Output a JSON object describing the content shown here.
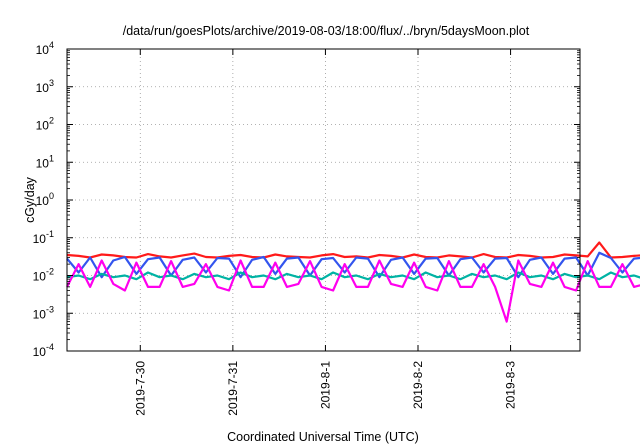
{
  "chart_data": {
    "type": "line",
    "title": "/data/run/goesPlots/archive/2019-08-03/18:00/flux/../bryn/5daysMoon.plot",
    "xlabel": "Coordinated Universal Time (UTC)",
    "ylabel": "cGy/day",
    "yscale": "log",
    "ylim": [
      0.0001,
      10000
    ],
    "y_ticks": [
      {
        "base": "10",
        "exp": "4"
      },
      {
        "base": "10",
        "exp": "3"
      },
      {
        "base": "10",
        "exp": "2"
      },
      {
        "base": "10",
        "exp": "1"
      },
      {
        "base": "10",
        "exp": "0"
      },
      {
        "base": "10",
        "exp": "-1"
      },
      {
        "base": "10",
        "exp": "-2"
      },
      {
        "base": "10",
        "exp": "-3"
      },
      {
        "base": "10",
        "exp": "-4"
      }
    ],
    "xlim": [
      "2019-07-29T05:00",
      "2019-08-03T18:00"
    ],
    "x_ticks": [
      {
        "value": "2019-07-30T00:00",
        "label": "2019-7-30"
      },
      {
        "value": "2019-07-31T00:00",
        "label": "2019-7-31"
      },
      {
        "value": "2019-08-01T00:00",
        "label": "2019-8-1"
      },
      {
        "value": "2019-08-02T00:00",
        "label": "2019-8-2"
      },
      {
        "value": "2019-08-03T00:00",
        "label": "2019-8-3"
      }
    ],
    "grid": true,
    "x_start": "2019-07-29T05:00",
    "x_step_hours": 3,
    "series": [
      {
        "color": "#ff1a1a",
        "values": [
          0.035,
          0.033,
          0.03,
          0.036,
          0.034,
          0.031,
          0.03,
          0.037,
          0.032,
          0.03,
          0.034,
          0.038,
          0.031,
          0.03,
          0.033,
          0.035,
          0.031,
          0.03,
          0.036,
          0.032,
          0.031,
          0.03,
          0.034,
          0.037,
          0.031,
          0.032,
          0.03,
          0.035,
          0.033,
          0.03,
          0.036,
          0.031,
          0.03,
          0.034,
          0.032,
          0.03,
          0.037,
          0.031,
          0.03,
          0.035,
          0.033,
          0.03,
          0.031,
          0.036,
          0.034,
          0.032,
          0.075,
          0.03,
          0.031,
          0.033,
          0.035,
          0.031,
          0.03,
          0.036,
          0.032,
          0.03
        ]
      },
      {
        "color": "#3355ee",
        "values": [
          0.028,
          0.012,
          0.03,
          0.009,
          0.025,
          0.031,
          0.011,
          0.027,
          0.03,
          0.01,
          0.026,
          0.03,
          0.012,
          0.029,
          0.028,
          0.009,
          0.026,
          0.031,
          0.011,
          0.028,
          0.03,
          0.01,
          0.027,
          0.029,
          0.012,
          0.03,
          0.028,
          0.009,
          0.026,
          0.03,
          0.011,
          0.028,
          0.029,
          0.01,
          0.027,
          0.03,
          0.012,
          0.028,
          0.029,
          0.009,
          0.026,
          0.03,
          0.011,
          0.028,
          0.03,
          0.01,
          0.04,
          0.029,
          0.012,
          0.028,
          0.03,
          0.009,
          0.026,
          0.031,
          0.011,
          0.025
        ]
      },
      {
        "color": "#00b3a4",
        "values": [
          0.009,
          0.01,
          0.008,
          0.011,
          0.009,
          0.01,
          0.008,
          0.012,
          0.009,
          0.01,
          0.008,
          0.011,
          0.009,
          0.01,
          0.008,
          0.012,
          0.009,
          0.01,
          0.008,
          0.011,
          0.009,
          0.01,
          0.008,
          0.012,
          0.009,
          0.01,
          0.008,
          0.011,
          0.009,
          0.01,
          0.008,
          0.012,
          0.009,
          0.01,
          0.008,
          0.011,
          0.009,
          0.01,
          0.008,
          0.012,
          0.009,
          0.01,
          0.008,
          0.011,
          0.009,
          0.01,
          0.008,
          0.012,
          0.009,
          0.01,
          0.008,
          0.011,
          0.009,
          0.01,
          0.008,
          0.01
        ]
      },
      {
        "color": "#ff00ee",
        "values": [
          0.005,
          0.02,
          0.005,
          0.025,
          0.006,
          0.004,
          0.022,
          0.005,
          0.005,
          0.024,
          0.005,
          0.006,
          0.02,
          0.005,
          0.004,
          0.025,
          0.005,
          0.005,
          0.022,
          0.005,
          0.006,
          0.024,
          0.005,
          0.004,
          0.02,
          0.005,
          0.005,
          0.025,
          0.006,
          0.005,
          0.022,
          0.005,
          0.004,
          0.024,
          0.005,
          0.005,
          0.02,
          0.005,
          0.0006,
          0.025,
          0.006,
          0.005,
          0.022,
          0.005,
          0.004,
          0.024,
          0.005,
          0.005,
          0.02,
          0.005,
          0.006,
          0.025,
          0.005,
          0.004,
          0.022,
          0.005
        ]
      }
    ]
  }
}
